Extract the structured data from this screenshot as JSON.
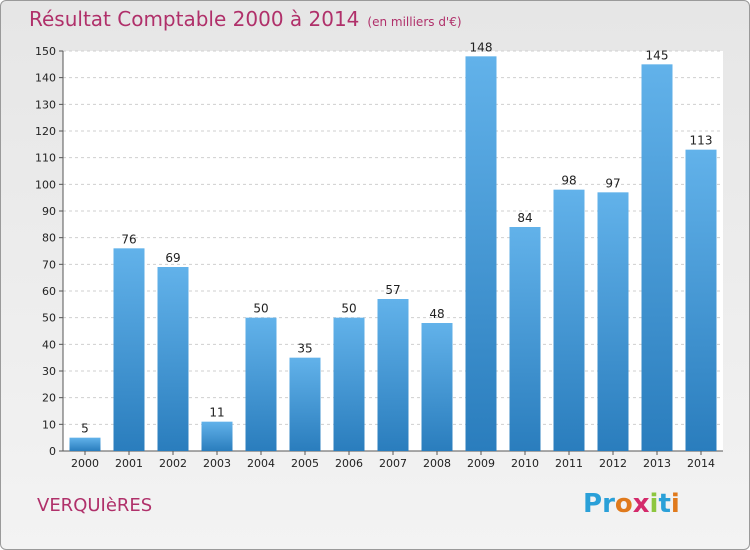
{
  "header": {
    "title": "Résultat Comptable 2000 à 2014",
    "unit": "(en milliers d'€)"
  },
  "commune": "VERQUIèRES",
  "logo": {
    "letters": [
      "P",
      "r",
      "o",
      "x",
      "i",
      "t",
      "i"
    ],
    "colors": [
      "#2aa0d8",
      "#2aa0d8",
      "#e07a1c",
      "#d42a6a",
      "#8dc63f",
      "#2aa0d8",
      "#e07a1c"
    ]
  },
  "colors": {
    "bar_top": "#62b2ea",
    "bar_bottom": "#2a7dbd",
    "accent": "#b0306a"
  },
  "chart_data": {
    "type": "bar",
    "title": "Résultat Comptable 2000 à 2014",
    "subtitle": "(en milliers d'€)",
    "categories": [
      "2000",
      "2001",
      "2002",
      "2003",
      "2004",
      "2005",
      "2006",
      "2007",
      "2008",
      "2009",
      "2010",
      "2011",
      "2012",
      "2013",
      "2014"
    ],
    "values": [
      5,
      76,
      69,
      11,
      50,
      35,
      50,
      57,
      48,
      148,
      84,
      98,
      97,
      145,
      113
    ],
    "ylim": [
      0,
      150
    ],
    "yticks": [
      0,
      10,
      20,
      30,
      40,
      50,
      60,
      70,
      80,
      90,
      100,
      110,
      120,
      130,
      140,
      150
    ],
    "grid": true,
    "legend": "none"
  }
}
